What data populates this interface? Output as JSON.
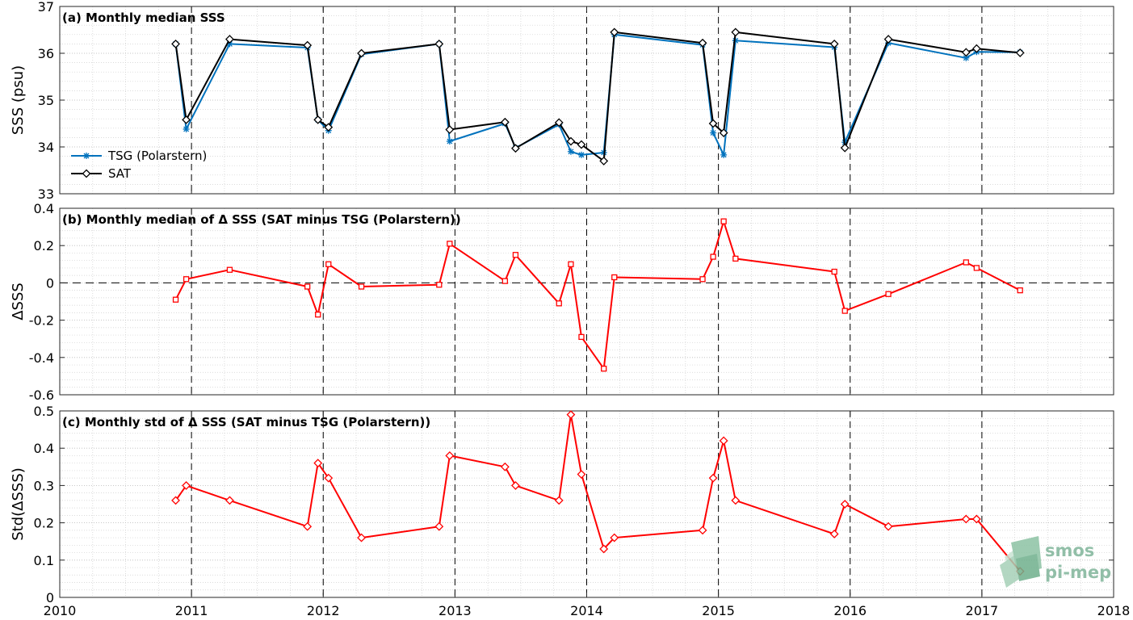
{
  "chart_data": [
    {
      "type": "line",
      "title": "(a) Monthly median SSS",
      "ylabel": "SSS (psu)",
      "ylim": [
        33,
        37
      ],
      "yticks": [
        33,
        34,
        35,
        36,
        37
      ],
      "xlim": [
        2010,
        2018
      ],
      "grid": "minor dotted, dashed vertical at year boundaries",
      "legend_position": "lower-left",
      "series": [
        {
          "name": "TSG (Polarstern)",
          "color": "#0072bd",
          "marker": "asterisk",
          "x": [
            2010.88,
            2010.96,
            2011.29,
            2011.88,
            2011.96,
            2012.04,
            2012.29,
            2012.88,
            2012.96,
            2013.38,
            2013.46,
            2013.79,
            2013.88,
            2013.96,
            2014.13,
            2014.21,
            2014.88,
            2014.96,
            2015.04,
            2015.13,
            2015.88,
            2015.96,
            2016.29,
            2016.88,
            2016.96,
            2017.29
          ],
          "values": [
            36.2,
            34.38,
            36.2,
            36.12,
            34.58,
            34.35,
            35.98,
            36.2,
            34.12,
            34.5,
            33.98,
            34.48,
            33.9,
            33.83,
            33.88,
            36.4,
            36.18,
            34.3,
            33.83,
            36.27,
            36.13,
            34.1,
            36.22,
            35.9,
            36.03,
            36.02
          ]
        },
        {
          "name": "SAT",
          "color": "#000000",
          "marker": "diamond",
          "x": [
            2010.88,
            2010.96,
            2011.29,
            2011.88,
            2011.96,
            2012.04,
            2012.29,
            2012.88,
            2012.96,
            2013.38,
            2013.46,
            2013.79,
            2013.88,
            2013.96,
            2014.13,
            2014.21,
            2014.88,
            2014.96,
            2015.04,
            2015.13,
            2015.88,
            2015.96,
            2016.29,
            2016.88,
            2016.96,
            2017.29
          ],
          "values": [
            36.2,
            34.58,
            36.3,
            36.17,
            34.58,
            34.42,
            36.0,
            36.2,
            34.37,
            34.53,
            33.97,
            34.52,
            34.12,
            34.05,
            33.7,
            36.45,
            36.22,
            34.5,
            34.3,
            36.45,
            36.2,
            33.98,
            36.3,
            36.02,
            36.1,
            36.01
          ]
        }
      ]
    },
    {
      "type": "line",
      "title": "(b) Monthly median of Δ SSS (SAT minus TSG (Polarstern))",
      "ylabel": "ΔSSS",
      "ylim": [
        -0.6,
        0.4
      ],
      "yticks": [
        -0.6,
        -0.4,
        -0.2,
        0,
        0.2,
        0.4
      ],
      "xlim": [
        2010,
        2018
      ],
      "reference_line": 0,
      "series": [
        {
          "color": "#ff0000",
          "marker": "square",
          "x": [
            2010.88,
            2010.96,
            2011.29,
            2011.88,
            2011.96,
            2012.04,
            2012.29,
            2012.88,
            2012.96,
            2013.38,
            2013.46,
            2013.79,
            2013.88,
            2013.96,
            2014.13,
            2014.21,
            2014.88,
            2014.96,
            2015.04,
            2015.13,
            2015.88,
            2015.96,
            2016.29,
            2016.88,
            2016.96,
            2017.29
          ],
          "values": [
            -0.09,
            0.02,
            0.07,
            -0.02,
            -0.17,
            0.1,
            -0.02,
            -0.01,
            0.21,
            0.01,
            0.15,
            -0.11,
            0.1,
            -0.29,
            -0.46,
            0.03,
            0.02,
            0.14,
            0.33,
            0.13,
            0.06,
            -0.15,
            -0.06,
            0.11,
            0.08,
            -0.04
          ]
        }
      ]
    },
    {
      "type": "line",
      "title": "(c) Monthly std of Δ SSS (SAT minus TSG (Polarstern))",
      "ylabel": "Std(ΔSSS)",
      "ylim": [
        0,
        0.5
      ],
      "yticks": [
        0,
        0.1,
        0.2,
        0.3,
        0.4,
        0.5
      ],
      "xlim": [
        2010,
        2018
      ],
      "xticks": [
        2010,
        2011,
        2012,
        2013,
        2014,
        2015,
        2016,
        2017,
        2018
      ],
      "series": [
        {
          "color": "#ff0000",
          "marker": "diamond",
          "x": [
            2010.88,
            2010.96,
            2011.29,
            2011.88,
            2011.96,
            2012.04,
            2012.29,
            2012.88,
            2012.96,
            2013.38,
            2013.46,
            2013.79,
            2013.88,
            2013.96,
            2014.13,
            2014.21,
            2014.88,
            2014.96,
            2015.04,
            2015.13,
            2015.88,
            2015.96,
            2016.29,
            2016.88,
            2016.96,
            2017.29
          ],
          "values": [
            0.26,
            0.3,
            0.26,
            0.19,
            0.36,
            0.32,
            0.16,
            0.19,
            0.38,
            0.35,
            0.3,
            0.26,
            0.49,
            0.33,
            0.13,
            0.16,
            0.18,
            0.32,
            0.42,
            0.26,
            0.17,
            0.25,
            0.19,
            0.21,
            0.21,
            0.07
          ]
        }
      ]
    }
  ],
  "logo": {
    "line1": "smos",
    "line2": "pi-mep",
    "color": "#7fb49a"
  }
}
